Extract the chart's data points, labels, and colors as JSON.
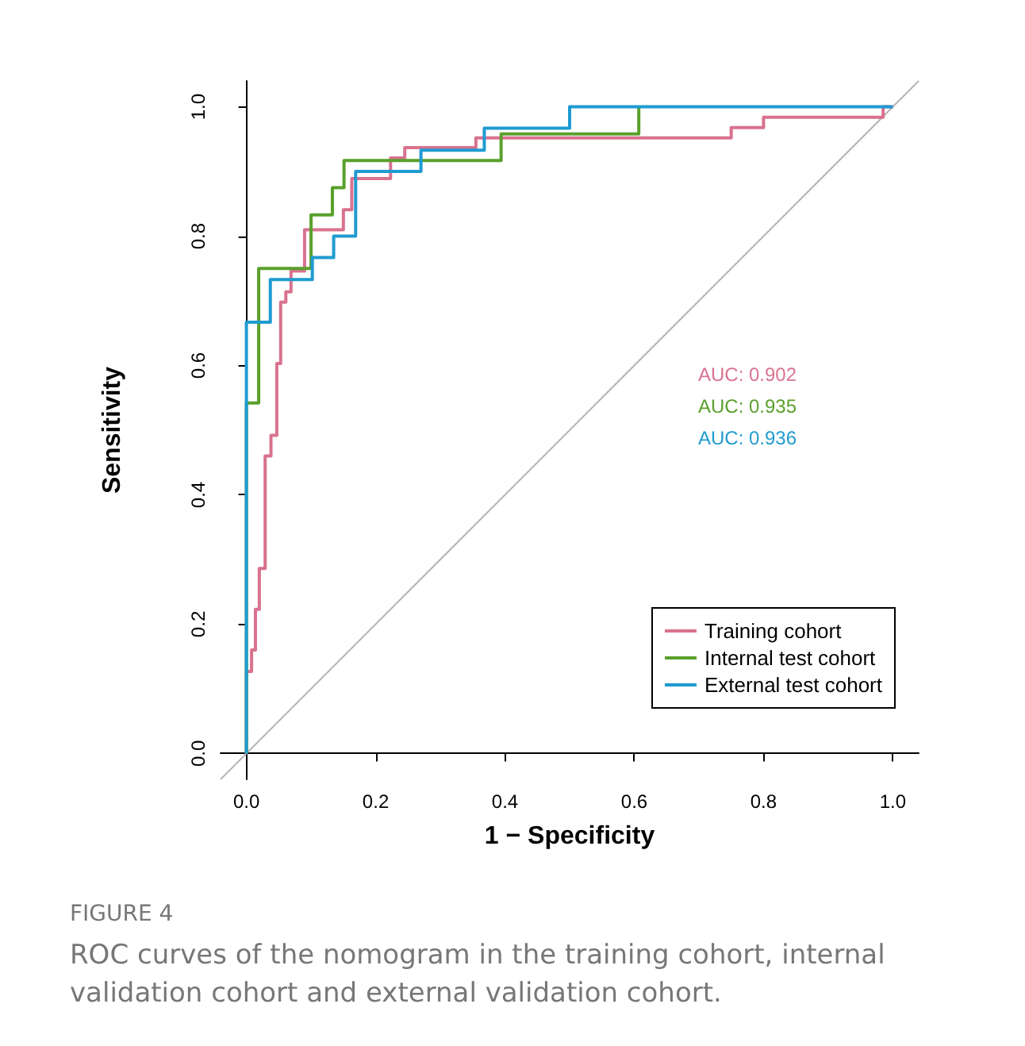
{
  "chart_data": {
    "type": "line",
    "xlabel": "1 − Specificity",
    "ylabel": "Sensitivity",
    "xlim": [
      -0.04,
      1.04
    ],
    "ylim": [
      -0.04,
      1.04
    ],
    "xticks": [
      {
        "value": 0,
        "label": "0.0"
      },
      0.2,
      0.4,
      0.6,
      0.8,
      {
        "value": 1,
        "label": "1.0"
      }
    ],
    "yticks": [
      {
        "value": 0,
        "label": "0.0"
      },
      0.2,
      0.4,
      0.6,
      0.8,
      {
        "value": 1,
        "label": "1.0"
      }
    ],
    "grid": false,
    "legend": "bottom right",
    "marker": "none",
    "line_style": "solid",
    "series": [
      {
        "name": null,
        "color": "#b4b4b4",
        "x": [
          -0.04,
          1.04
        ],
        "values": [
          -0.04,
          1.04
        ]
      },
      {
        "name": "Training cohort",
        "color": "#d9728f",
        "x": [
          0,
          0,
          0.008,
          0.008,
          0.014,
          0.014,
          0.02,
          0.02,
          0.029,
          0.029,
          0.038,
          0.038,
          0.047,
          0.047,
          0.053,
          0.053,
          0.061,
          0.061,
          0.069,
          0.069,
          0.09,
          0.09,
          0.15,
          0.15,
          0.163,
          0.163,
          0.223,
          0.223,
          0.245,
          0.245,
          0.355,
          0.355,
          0.75,
          0.75,
          0.8,
          0.8,
          0.985,
          0.985,
          1
        ],
        "values": [
          0,
          0.127,
          0.127,
          0.16,
          0.16,
          0.223,
          0.223,
          0.286,
          0.286,
          0.46,
          0.46,
          0.492,
          0.492,
          0.603,
          0.603,
          0.698,
          0.698,
          0.714,
          0.714,
          0.746,
          0.746,
          0.81,
          0.81,
          0.841,
          0.841,
          0.889,
          0.889,
          0.921,
          0.921,
          0.937,
          0.937,
          0.952,
          0.952,
          0.968,
          0.968,
          0.984,
          0.984,
          1,
          1
        ]
      },
      {
        "name": "Internal test cohort",
        "color": "#5aa02c",
        "x": [
          0,
          0,
          0.019,
          0.019,
          0.1,
          0.1,
          0.133,
          0.133,
          0.151,
          0.151,
          0.394,
          0.394,
          0.607,
          0.607
        ],
        "values": [
          0,
          0.542,
          0.542,
          0.75,
          0.75,
          0.833,
          0.833,
          0.875,
          0.875,
          0.917,
          0.917,
          0.958,
          0.958,
          1
        ]
      },
      {
        "name": "External test cohort",
        "color": "#1f9bd1",
        "x": [
          0,
          0,
          0.037,
          0.037,
          0.102,
          0.102,
          0.135,
          0.135,
          0.169,
          0.169,
          0.27,
          0.27,
          0.368,
          0.368,
          0.5,
          0.5,
          1
        ],
        "values": [
          0,
          0.667,
          0.667,
          0.733,
          0.733,
          0.767,
          0.767,
          0.8,
          0.8,
          0.9,
          0.9,
          0.933,
          0.933,
          0.967,
          0.967,
          1,
          1
        ]
      }
    ],
    "annotations": [
      "AUC: 0.902",
      "AUC: 0.935",
      "AUC: 0.936",
      "FIGURE 4",
      "ROC curves of the nomogram in the training cohort, internal validation cohort and external validation cohort."
    ]
  }
}
